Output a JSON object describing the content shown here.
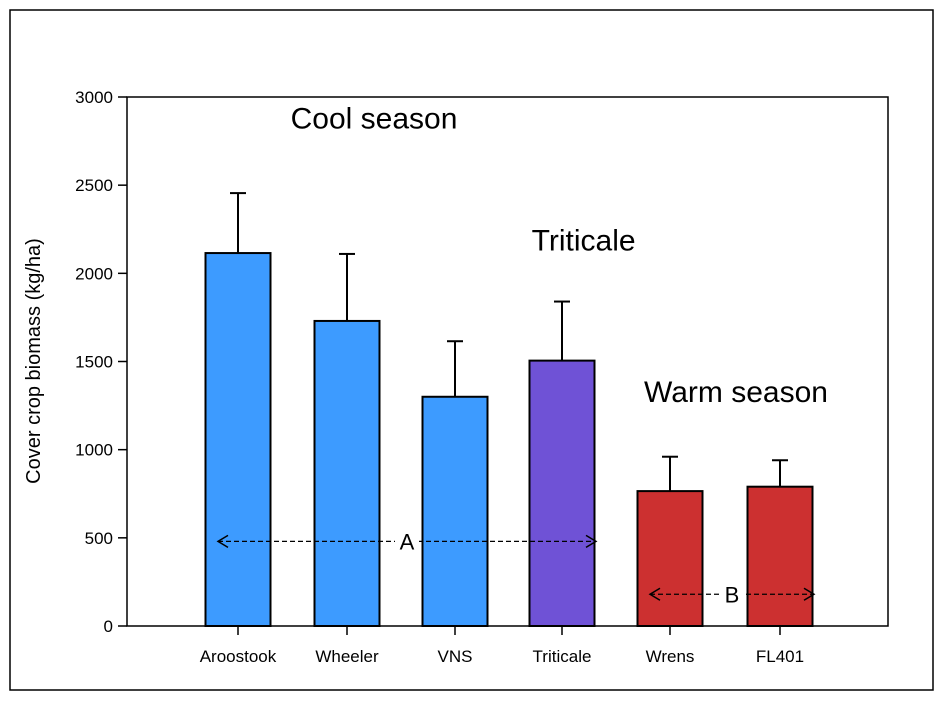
{
  "chart_data": {
    "type": "bar",
    "title": "",
    "xlabel": "",
    "ylabel": "Cover crop biomass (kg/ha)",
    "ylim": [
      0,
      3000
    ],
    "yticks": [
      0,
      500,
      1000,
      1500,
      2000,
      2500,
      3000
    ],
    "categories": [
      "Aroostook",
      "Wheeler",
      "VNS",
      "Triticale",
      "Wrens",
      "FL401"
    ],
    "values": [
      2115,
      1730,
      1300,
      1505,
      765,
      790
    ],
    "errors": [
      340,
      380,
      315,
      335,
      195,
      150
    ],
    "colors": [
      "#3d9bff",
      "#3d9bff",
      "#3d9bff",
      "#6f52d6",
      "#cc3030",
      "#cc3030"
    ],
    "grid": false,
    "annotations": [
      {
        "text": "Cool season",
        "x": 1.25,
        "y": 2820
      },
      {
        "text": "Triticale",
        "x": 3.2,
        "y": 2130
      },
      {
        "text": "Warm season",
        "x": 4.6,
        "y": 1270
      }
    ],
    "groups": [
      {
        "label": "A",
        "from": 0,
        "to": 3,
        "y": 480
      },
      {
        "label": "B",
        "from": 4,
        "to": 5,
        "y": 180
      }
    ]
  }
}
